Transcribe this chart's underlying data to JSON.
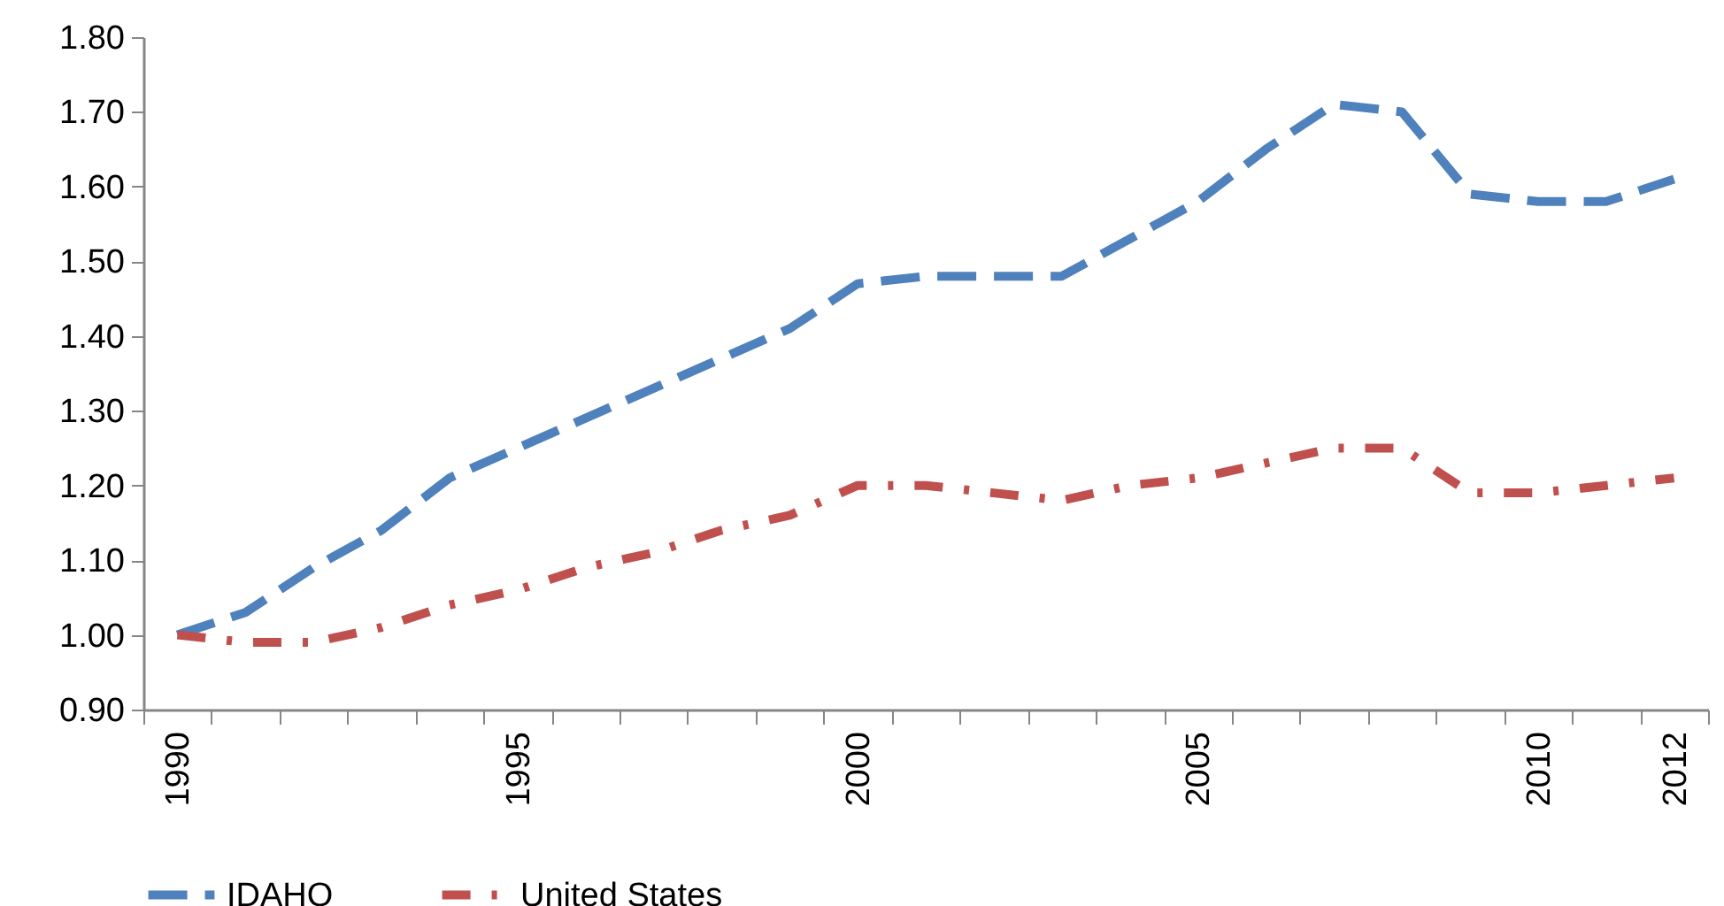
{
  "chart_data": {
    "type": "line",
    "categories": [
      "1990",
      null,
      null,
      null,
      null,
      "1995",
      null,
      null,
      null,
      null,
      "2000",
      null,
      null,
      null,
      null,
      "2005",
      null,
      null,
      null,
      null,
      "2010",
      null,
      "2012"
    ],
    "series": [
      {
        "name": "IDAHO",
        "color": "#4f81bd",
        "line_style": "dashed",
        "values": [
          1.0,
          1.03,
          1.09,
          1.14,
          1.21,
          1.25,
          1.29,
          1.33,
          1.37,
          1.41,
          1.47,
          1.48,
          1.48,
          1.48,
          1.53,
          1.58,
          1.65,
          1.71,
          1.7,
          1.59,
          1.58,
          1.58,
          1.61
        ]
      },
      {
        "name": "United States",
        "color": "#c0504d",
        "line_style": "dotted",
        "values": [
          1.0,
          0.99,
          0.99,
          1.01,
          1.04,
          1.06,
          1.09,
          1.11,
          1.14,
          1.16,
          1.2,
          1.2,
          1.19,
          1.18,
          1.2,
          1.21,
          1.23,
          1.25,
          1.25,
          1.19,
          1.19,
          1.2,
          1.21
        ]
      }
    ],
    "ylim": [
      0.9,
      1.8
    ],
    "yticks": [
      {
        "value": 0.9,
        "label": "0.90"
      },
      {
        "value": 1.0,
        "label": "1.00"
      },
      {
        "value": 1.1,
        "label": "1.10"
      },
      {
        "value": 1.2,
        "label": "1.20"
      },
      {
        "value": 1.3,
        "label": "1.30"
      },
      {
        "value": 1.4,
        "label": "1.40"
      },
      {
        "value": 1.5,
        "label": "1.50"
      },
      {
        "value": 1.6,
        "label": "1.60"
      },
      {
        "value": 1.7,
        "label": "1.70"
      },
      {
        "value": 1.8,
        "label": "1.80"
      }
    ],
    "grid": false,
    "legend": "bottom",
    "marker": "none"
  }
}
